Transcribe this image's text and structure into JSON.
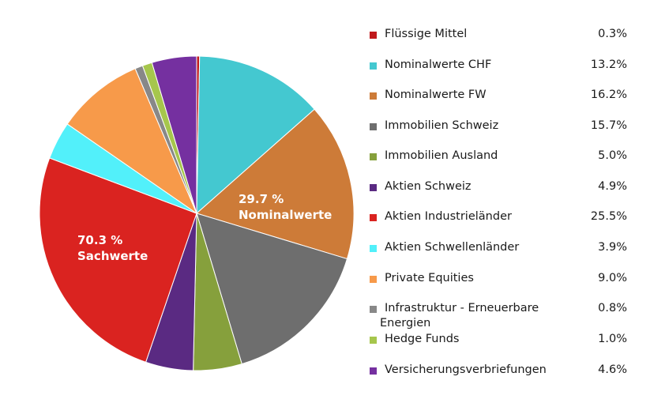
{
  "chart_data": {
    "type": "pie",
    "title": "",
    "start_angle_deg": 0,
    "direction": "clockwise",
    "slices": [
      {
        "label": "Flüssige Mittel",
        "value": 0.3,
        "display": "0.3%",
        "color": "#C0191C"
      },
      {
        "label": "Nominalwerte CHF",
        "value": 13.2,
        "display": "13.2%",
        "color": "#44C8D0"
      },
      {
        "label": "Nominalwerte FW",
        "value": 16.2,
        "display": "16.2%",
        "color": "#CD7B38"
      },
      {
        "label": "Immobilien Schweiz",
        "value": 15.7,
        "display": "15.7%",
        "color": "#6E6E6E"
      },
      {
        "label": "Immobilien Ausland",
        "value": 5.0,
        "display": "5.0%",
        "color": "#86A03C"
      },
      {
        "label": "Aktien Schweiz",
        "value": 4.9,
        "display": "4.9%",
        "color": "#5A2A82"
      },
      {
        "label": "Aktien Industrieländer",
        "value": 25.5,
        "display": "25.5%",
        "color": "#DA2320"
      },
      {
        "label": "Aktien Schwellenländer",
        "value": 3.9,
        "display": "3.9%",
        "color": "#52F0FA"
      },
      {
        "label": "Private Equities",
        "value": 9.0,
        "display": "9.0%",
        "color": "#F79A4A"
      },
      {
        "label": "Infrastruktur - Erneuerbare",
        "label_line2": "Energien",
        "value": 0.8,
        "display": "0.8%",
        "color": "#888888"
      },
      {
        "label": "Hedge Funds",
        "value": 1.0,
        "display": "1.0%",
        "color": "#A6C64C"
      },
      {
        "label": "Versicherungsverbriefungen",
        "value": 4.6,
        "display": "4.6%",
        "color": "#7530A0"
      }
    ],
    "annotations": [
      {
        "line1": "29.7 %",
        "line2": "Nominalwerte"
      },
      {
        "line1": "70.3 %",
        "line2": "Sachwerte"
      }
    ],
    "legend_position": "right"
  }
}
